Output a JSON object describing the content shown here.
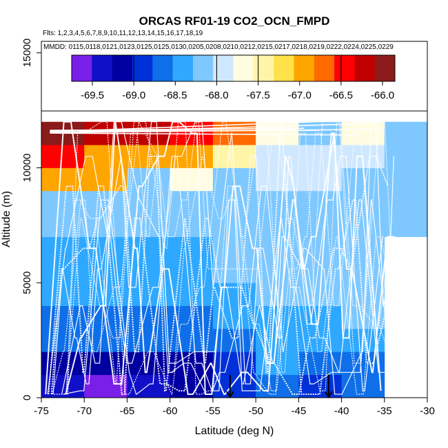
{
  "chart_data": {
    "type": "heatmap",
    "title": "ORCAS RF01-19 CO2_OCN_FMPD",
    "flights_text": "Flts: 1,2,3,4,5,6,7,8,9,10,11,12,13,14,15,16,17,18,19",
    "dates_text": "MMDD: 0115,0118,0121,0123,0125,0125,0130,0205,0208,0210,0212,0215,0217,0218,0219,0222,0224,0225,0229",
    "xlabel": "Latitude (deg N)",
    "ylabel": "Altitude (m)",
    "xlim": [
      -75,
      -30
    ],
    "ylim": [
      0,
      15500
    ],
    "x_ticks": [
      -75,
      -70,
      -65,
      -60,
      -55,
      -50,
      -45,
      -40,
      -35,
      -30
    ],
    "x_tick_labels": [
      "-75",
      "-70",
      "-65",
      "-60",
      "-55",
      "-50",
      "-45",
      "-40",
      "-35",
      "-30"
    ],
    "y_ticks": [
      0,
      5000,
      10000,
      15000
    ],
    "y_tick_labels": [
      "0",
      "5000",
      "10000",
      "15000"
    ],
    "colorbar": {
      "min": -69.75,
      "max": -65.85,
      "ticks": [
        -69.5,
        -69.0,
        -68.5,
        -68.0,
        -67.5,
        -67.0,
        -66.5,
        -66.0
      ],
      "tick_labels": [
        "-69.5",
        "-69.0",
        "-68.5",
        "-68.0",
        "-67.5",
        "-67.0",
        "-66.5",
        "-66.0"
      ],
      "separators": [
        -69.0,
        -68.0,
        -67.5,
        -66.5
      ],
      "colors": [
        "#7a1fe8",
        "#1010c8",
        "#0000a0",
        "#0030d8",
        "#0f6fe8",
        "#2fa8ff",
        "#7ec8ff",
        "#cfe8ff",
        "#fffce0",
        "#fff5a8",
        "#ffe14a",
        "#ffa500",
        "#ff6a00",
        "#ff0000",
        "#c00000",
        "#8b1a1a"
      ]
    },
    "lat_bin_edges": [
      -75,
      -70,
      -65,
      -60,
      -55,
      -50,
      -45,
      -40,
      -35,
      -30
    ],
    "alt_bin_edges": [
      0,
      1000,
      2000,
      3000,
      4000,
      5000,
      6000,
      7000,
      8000,
      9000,
      10000,
      11000,
      12000
    ],
    "grid": [
      [
        -69.45,
        -69.7,
        -69.5,
        -69.2,
        -68.9,
        -68.7,
        -68.8,
        -68.6,
        null
      ],
      [
        -69.1,
        -69.2,
        -69.15,
        -69.2,
        -68.8,
        -68.5,
        -68.6,
        -68.55,
        null
      ],
      [
        -68.75,
        -68.75,
        -68.75,
        -68.75,
        -68.6,
        -68.4,
        -68.4,
        -68.3,
        null
      ],
      [
        -68.55,
        -68.55,
        -68.55,
        -68.55,
        -68.4,
        -68.3,
        -68.3,
        -68.25,
        null
      ],
      [
        -68.45,
        -68.45,
        -68.45,
        -68.4,
        -68.3,
        -68.25,
        -68.25,
        -68.2,
        null
      ],
      [
        -68.35,
        -68.35,
        -68.35,
        -68.3,
        -68.25,
        -68.2,
        -68.2,
        -68.2,
        null
      ],
      [
        -68.3,
        -68.3,
        -68.3,
        -68.3,
        -68.2,
        -68.15,
        -68.15,
        -68.15,
        null
      ],
      [
        -68.2,
        -68.25,
        -68.2,
        -68.2,
        -68.15,
        -68.1,
        -68.1,
        -68.15,
        -68.15
      ],
      [
        -68.1,
        -68.15,
        -68.15,
        -68.15,
        -68.1,
        -68.05,
        -68.05,
        -68.1,
        -68.1
      ],
      [
        -66.85,
        -66.85,
        -68.1,
        -67.7,
        -68.05,
        -68.0,
        -68.0,
        -68.05,
        -68.1
      ],
      [
        -66.4,
        -66.85,
        -66.85,
        -66.9,
        -67.55,
        -68.0,
        -68.0,
        -67.95,
        -68.05
      ],
      [
        -65.95,
        -66.25,
        -66.3,
        -66.35,
        -66.6,
        -67.65,
        -68.05,
        -67.6,
        -68.05
      ]
    ],
    "profile_markers_lat": [
      -53,
      -41.5
    ]
  }
}
